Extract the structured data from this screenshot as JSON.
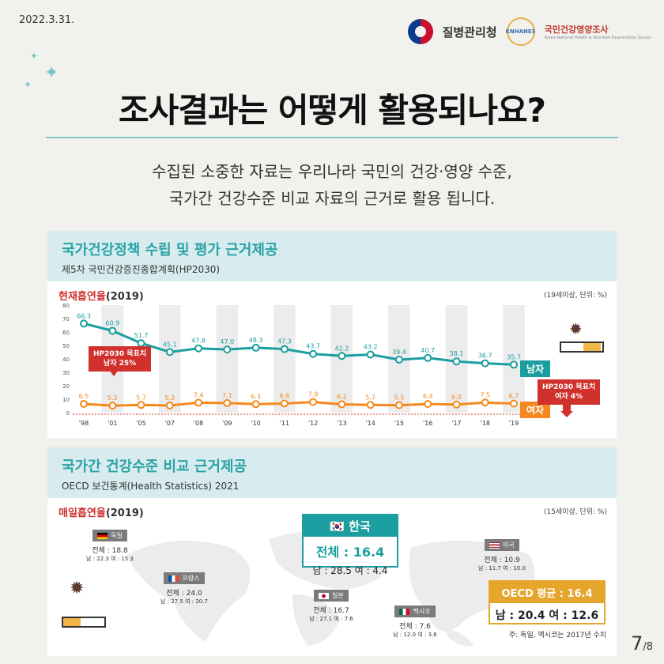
{
  "header": {
    "date": "2022.3.31.",
    "org1": "질병관리청",
    "org2": "국민건강영양조사",
    "org2_sub": "Korea National Health & Nutrition Examination Survey",
    "badge": "KNHANES"
  },
  "title": "조사결과는 어떻게 활용되나요?",
  "subtitle_line1": "수집된 소중한 자료는 우리나라 국민의 건강·영양 수준,",
  "subtitle_line2": "국가간 건강수준 비교 자료의 근거로 활용 됩니다.",
  "section1": {
    "title": "국가건강정책 수립 및 평가 근거제공",
    "sub": "제5차 국민건강증진종합계획(HP2030)",
    "chart_label_red": "현재흡연율",
    "chart_label_year": "(2019)",
    "unit": "(19세이상, 단위: %)",
    "male_tag": "남자",
    "female_tag": "여자",
    "target_male_line1": "HP2030 목표치",
    "target_male_line2": "남자 25%",
    "target_female_line1": "HP2030 목표치",
    "target_female_line2": "여자 4%"
  },
  "chart_data": {
    "type": "line",
    "categories": [
      "'98",
      "'01",
      "'05",
      "'07",
      "'08",
      "'09",
      "'10",
      "'11",
      "'12",
      "'13",
      "'14",
      "'15",
      "'16",
      "'17",
      "'18",
      "'19"
    ],
    "series": [
      {
        "name": "남자",
        "values": [
          66.3,
          60.9,
          51.7,
          45.1,
          47.8,
          47.0,
          48.3,
          47.3,
          43.7,
          42.2,
          43.2,
          39.4,
          40.7,
          38.1,
          36.7,
          35.7
        ],
        "color": "#1b9ea0"
      },
      {
        "name": "여자",
        "values": [
          6.5,
          5.2,
          5.7,
          5.3,
          7.4,
          7.1,
          6.3,
          6.8,
          7.9,
          6.2,
          5.7,
          5.5,
          6.4,
          6.0,
          7.5,
          6.7
        ],
        "color": "#f5891f"
      }
    ],
    "yticks": [
      0,
      10,
      20,
      30,
      40,
      50,
      60,
      70,
      80
    ],
    "ylim": [
      0,
      80
    ]
  },
  "section2": {
    "title": "국가간 건강수준 비교 근거제공",
    "sub": "OECD 보건통계(Health Statistics) 2021",
    "chart_label_red": "매일흡연율",
    "chart_label_year": "(2019)",
    "unit": "(15세이상, 단위: %)",
    "korea": {
      "name": "한국",
      "total": "전체 : 16.4",
      "split": "남 : 28.5  여 : 4.4"
    },
    "oecd": {
      "head": "OECD 평균 : 16.4",
      "split": "남 : 20.4  여 : 12.6"
    },
    "countries": [
      {
        "name": "독일",
        "total": "전체 : 18.8",
        "split": "남 : 22.3  여 : 15.3"
      },
      {
        "name": "프랑스",
        "total": "전체 : 24.0",
        "split": "남 : 27.5  여 : 20.7"
      },
      {
        "name": "일본",
        "total": "전체 : 16.7",
        "split": "남 : 27.1  여 : 7.6"
      },
      {
        "name": "멕시코",
        "total": "전체 : 7.6",
        "split": "남 : 12.0  여 : 3.6"
      },
      {
        "name": "미국",
        "total": "전체 : 10.9",
        "split": "남 : 11.7  여 : 10.0"
      }
    ],
    "note": "주: 독일, 멕시코는 2017년 수치"
  },
  "page": {
    "current": "7",
    "total": "/8"
  }
}
